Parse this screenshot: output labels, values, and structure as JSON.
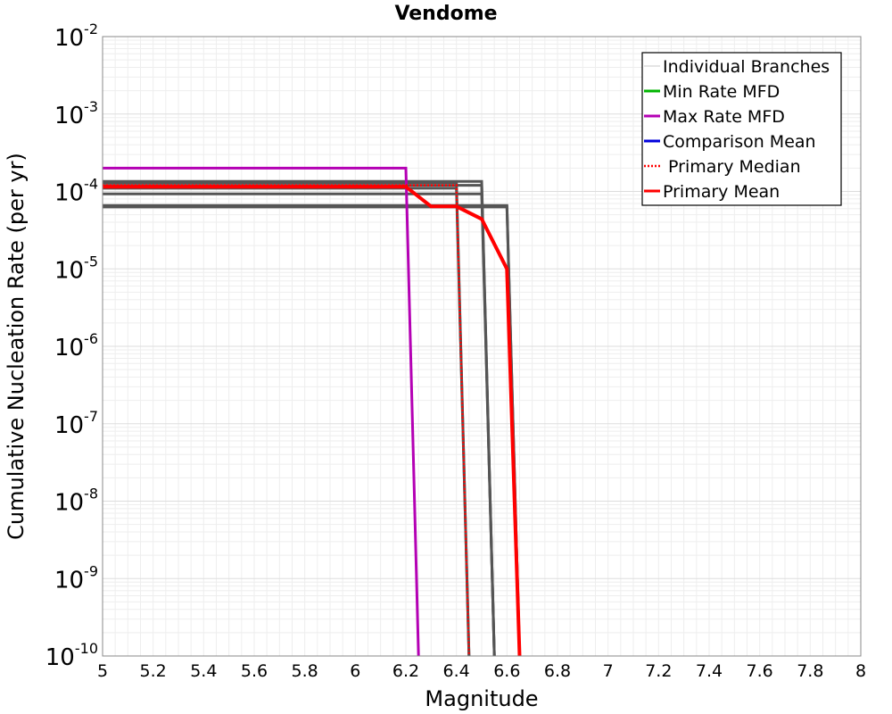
{
  "chart_data": {
    "type": "line",
    "title": "Vendome",
    "xlabel": "Magnitude",
    "ylabel": "Cumulative Nucleation Rate (per yr)",
    "xlim": [
      5,
      8
    ],
    "ylim": [
      1e-10,
      0.01
    ],
    "yscale": "log",
    "grid": true,
    "legend_position": "top-right",
    "x_ticks": [
      "5",
      "5.2",
      "5.4",
      "5.6",
      "5.8",
      "6",
      "6.2",
      "6.4",
      "6.6",
      "6.8",
      "7",
      "7.2",
      "7.4",
      "7.6",
      "7.8",
      "8"
    ],
    "y_ticks": [
      {
        "base": "10",
        "exp": "-2"
      },
      {
        "base": "10",
        "exp": "-3"
      },
      {
        "base": "10",
        "exp": "-4"
      },
      {
        "base": "10",
        "exp": "-5"
      },
      {
        "base": "10",
        "exp": "-6"
      },
      {
        "base": "10",
        "exp": "-7"
      },
      {
        "base": "10",
        "exp": "-8"
      },
      {
        "base": "10",
        "exp": "-9"
      },
      {
        "base": "10",
        "exp": "-10"
      }
    ],
    "legend": [
      {
        "name": "Individual Branches",
        "color": "#c8c8c8",
        "style": "solid"
      },
      {
        "name": "Min Rate MFD",
        "color": "#00b400",
        "style": "solid"
      },
      {
        "name": "Max Rate MFD",
        "color": "#b400b4",
        "style": "solid"
      },
      {
        "name": "Comparison Mean",
        "color": "#0000dc",
        "style": "solid"
      },
      {
        "name": " Primary Median",
        "color": "#ff0000",
        "style": "dotted"
      },
      {
        "name": "Primary Mean",
        "color": "#ff0000",
        "style": "solid"
      }
    ],
    "series": [
      {
        "role": "branch",
        "color": "#555555",
        "width": 3,
        "style": "solid",
        "x": [
          5,
          6.5,
          6.55
        ],
        "y": [
          0.000135,
          0.000135,
          1e-10
        ]
      },
      {
        "role": "branch",
        "color": "#555555",
        "width": 3,
        "style": "solid",
        "x": [
          5,
          6.5,
          6.55
        ],
        "y": [
          0.00012,
          0.00012,
          1e-10
        ]
      },
      {
        "role": "branch",
        "color": "#555555",
        "width": 3,
        "style": "solid",
        "x": [
          5,
          6.4,
          6.45
        ],
        "y": [
          0.00013,
          0.00013,
          1e-10
        ]
      },
      {
        "role": "branch",
        "color": "#555555",
        "width": 3,
        "style": "solid",
        "x": [
          5,
          6.4,
          6.45
        ],
        "y": [
          0.00011,
          0.00011,
          1e-10
        ]
      },
      {
        "role": "branch",
        "color": "#555555",
        "width": 3,
        "style": "solid",
        "x": [
          5,
          6.5,
          6.55
        ],
        "y": [
          9.3e-05,
          9.3e-05,
          1e-10
        ]
      },
      {
        "role": "branch",
        "color": "#555555",
        "width": 3,
        "style": "solid",
        "x": [
          5,
          6.6,
          6.65
        ],
        "y": [
          6.6e-05,
          6.6e-05,
          1e-10
        ]
      },
      {
        "role": "branch",
        "color": "#555555",
        "width": 3,
        "style": "solid",
        "x": [
          5,
          6.6,
          6.65
        ],
        "y": [
          6.3e-05,
          6.3e-05,
          1e-10
        ]
      },
      {
        "name": "Max Rate MFD",
        "color": "#b400b4",
        "width": 3,
        "style": "solid",
        "x": [
          5,
          6.2,
          6.25
        ],
        "y": [
          0.0002,
          0.0002,
          1e-10
        ]
      },
      {
        "name": "Primary Median",
        "color": "#ff0000",
        "width": 2.5,
        "style": "dotted",
        "x": [
          5,
          6.4,
          6.45
        ],
        "y": [
          0.00012,
          0.00012,
          1e-10
        ]
      },
      {
        "name": "Primary Mean",
        "color": "#ff0000",
        "width": 4,
        "style": "solid",
        "x": [
          5,
          6.2,
          6.3,
          6.4,
          6.5,
          6.6,
          6.65
        ],
        "y": [
          0.000115,
          0.000115,
          6.4e-05,
          6.4e-05,
          4.4e-05,
          1e-05,
          1e-10
        ]
      }
    ]
  }
}
